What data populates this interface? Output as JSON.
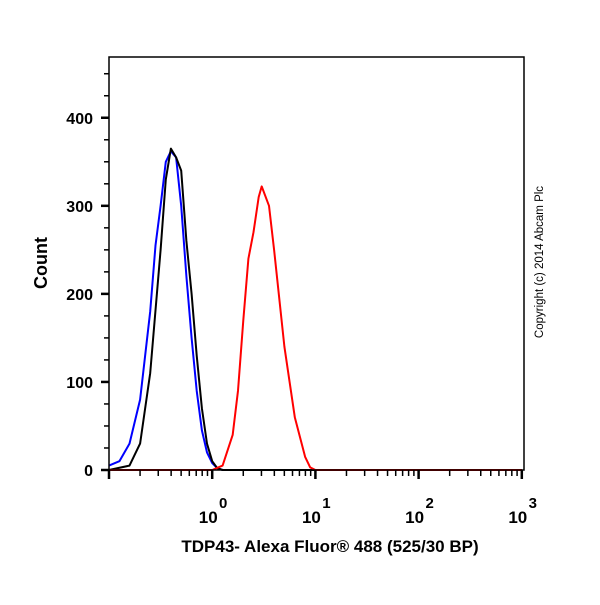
{
  "chart_data": {
    "type": "line",
    "title": "",
    "xlabel": "TDP43- Alexa Fluor® 488 (525/30 BP)",
    "ylabel": "Count",
    "xscale": "log",
    "xlim": [
      0.1,
      1050
    ],
    "ylim": [
      0,
      469
    ],
    "yticks": [
      0,
      100,
      200,
      300,
      400
    ],
    "xticks": [
      {
        "base": "10",
        "exp": "0",
        "value": 1
      },
      {
        "base": "10",
        "exp": "1",
        "value": 10
      },
      {
        "base": "10",
        "exp": "2",
        "value": 100
      },
      {
        "base": "10",
        "exp": "3",
        "value": 1000
      }
    ],
    "grid": false,
    "annotation": "Copyright (c) 2014 Abcam Plc",
    "series": [
      {
        "name": "blue",
        "color": "#0000ff",
        "x": [
          0.1,
          0.126,
          0.158,
          0.2,
          0.251,
          0.282,
          0.316,
          0.355,
          0.398,
          0.447,
          0.501,
          0.562,
          0.631,
          0.708,
          0.794,
          0.891,
          1,
          1.12,
          1.26,
          1000
        ],
        "y": [
          5,
          10,
          30,
          80,
          180,
          255,
          300,
          350,
          362,
          355,
          300,
          220,
          150,
          90,
          45,
          20,
          8,
          2,
          0,
          0
        ]
      },
      {
        "name": "black",
        "color": "#000000",
        "x": [
          0.1,
          0.158,
          0.2,
          0.251,
          0.316,
          0.355,
          0.398,
          0.447,
          0.501,
          0.562,
          0.631,
          0.708,
          0.794,
          0.891,
          1,
          1.12,
          1.26,
          1000
        ],
        "y": [
          0,
          5,
          30,
          110,
          250,
          330,
          365,
          355,
          340,
          260,
          200,
          130,
          70,
          30,
          10,
          2,
          0,
          0
        ]
      },
      {
        "name": "red",
        "color": "#ff0000",
        "x": [
          0.1,
          1,
          1.26,
          1.58,
          1.78,
          2.0,
          2.24,
          2.51,
          2.82,
          3.02,
          3.55,
          3.98,
          5.01,
          6.31,
          7.94,
          8.91,
          10,
          1000
        ],
        "y": [
          0,
          0,
          5,
          40,
          90,
          170,
          240,
          270,
          310,
          322,
          300,
          250,
          140,
          60,
          15,
          3,
          0,
          0
        ]
      }
    ]
  }
}
